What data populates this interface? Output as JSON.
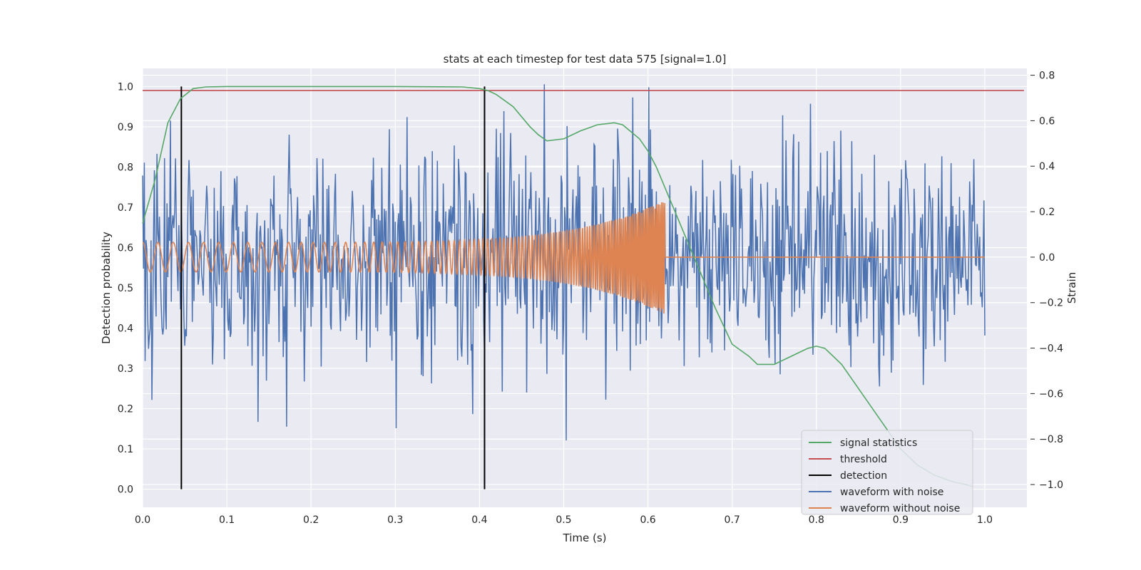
{
  "chart_data": {
    "type": "line",
    "title": "stats at each timestep for test data 575 [signal=1.0]",
    "xlabel": "Time (s)",
    "ylabel": "Detection probability",
    "y2label": "Strain",
    "xlim": [
      0.0,
      1.05
    ],
    "ylim": [
      -0.045,
      1.045
    ],
    "y2lim": [
      -1.1,
      0.83
    ],
    "xticks": [
      0.0,
      0.1,
      0.2,
      0.3,
      0.4,
      0.5,
      0.6,
      0.7,
      0.8,
      0.9,
      1.0
    ],
    "yticks": [
      0.0,
      0.1,
      0.2,
      0.3,
      0.4,
      0.5,
      0.6,
      0.7,
      0.8,
      0.9,
      1.0
    ],
    "y2ticks": [
      -1.0,
      -0.8,
      -0.6,
      -0.4,
      -0.2,
      0.0,
      0.2,
      0.4,
      0.6,
      0.8
    ],
    "grid": true,
    "legend_position": "lower-right",
    "colors": {
      "signal_statistics": "#55a868",
      "threshold": "#c44e52",
      "detection": "#000000",
      "waveform_with_noise": "#4c72b0",
      "waveform_without_noise": "#dd8452",
      "axes_background": "#eaeaf2",
      "grid": "#ffffff"
    },
    "threshold": 0.99,
    "detections": [
      0.046,
      0.406
    ],
    "series": [
      {
        "name": "signal statistics",
        "axis": "left",
        "x": [
          0.0,
          0.015,
          0.03,
          0.045,
          0.06,
          0.075,
          0.1,
          0.2,
          0.3,
          0.38,
          0.4,
          0.41,
          0.42,
          0.44,
          0.46,
          0.47,
          0.48,
          0.5,
          0.52,
          0.54,
          0.56,
          0.57,
          0.59,
          0.6,
          0.61,
          0.62,
          0.64,
          0.66,
          0.68,
          0.7,
          0.72,
          0.73,
          0.75,
          0.77,
          0.79,
          0.8,
          0.81,
          0.82,
          0.83,
          0.84,
          0.86,
          0.88,
          0.9,
          0.92,
          0.94,
          0.96,
          0.98,
          0.985
        ],
        "y": [
          0.66,
          0.77,
          0.91,
          0.97,
          0.995,
          0.999,
          1.0,
          1.0,
          1.0,
          0.999,
          0.995,
          0.99,
          0.98,
          0.95,
          0.9,
          0.88,
          0.865,
          0.87,
          0.89,
          0.905,
          0.91,
          0.905,
          0.87,
          0.84,
          0.8,
          0.75,
          0.65,
          0.55,
          0.45,
          0.36,
          0.33,
          0.31,
          0.31,
          0.33,
          0.35,
          0.355,
          0.35,
          0.33,
          0.31,
          0.28,
          0.22,
          0.16,
          0.1,
          0.06,
          0.035,
          0.02,
          0.01,
          0.007
        ]
      },
      {
        "name": "waveform with noise",
        "axis": "right",
        "x_range": [
          0.0,
          1.0
        ],
        "samples": 1000,
        "amplitude_std": 0.24,
        "y_range": [
          -1.0,
          0.78
        ]
      },
      {
        "name": "waveform without noise",
        "axis": "right",
        "x_range": [
          0.0,
          1.0
        ],
        "chirp_end": 0.62,
        "amplitude_start": 0.065,
        "amplitude_peak": 0.25,
        "frequency_start_hz": 55,
        "frequency_end_hz": 300
      }
    ],
    "legend": [
      "signal statistics",
      "threshold",
      "detection",
      "waveform with noise",
      "waveform without noise"
    ]
  }
}
